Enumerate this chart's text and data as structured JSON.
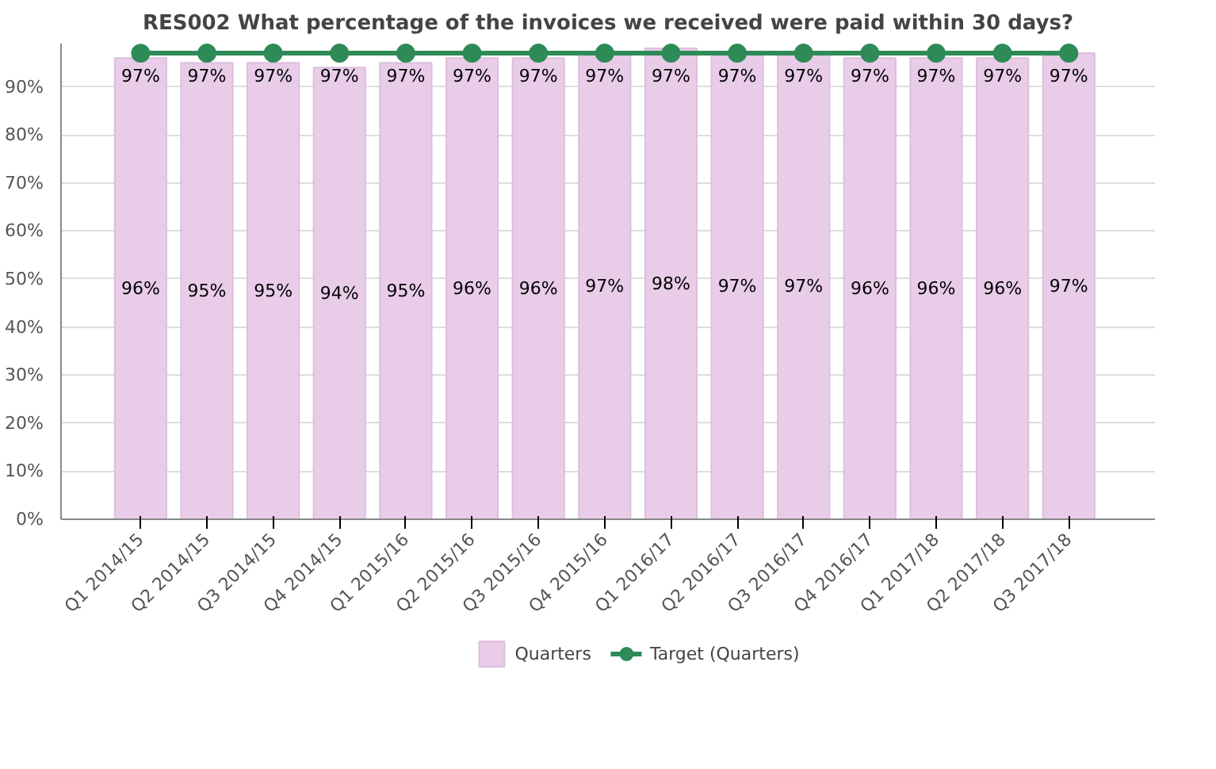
{
  "chart_data": {
    "type": "bar",
    "title": "RES002 What percentage of the invoices we received were paid within 30 days?",
    "categories": [
      "Q1 2014/15",
      "Q2 2014/15",
      "Q3 2014/15",
      "Q4 2014/15",
      "Q1 2015/16",
      "Q2 2015/16",
      "Q3 2015/16",
      "Q4 2015/16",
      "Q1 2016/17",
      "Q2 2016/17",
      "Q3 2016/17",
      "Q4 2016/17",
      "Q1 2017/18",
      "Q2 2017/18",
      "Q3 2017/18"
    ],
    "series": [
      {
        "name": "Quarters",
        "color": "#e8cce8",
        "values": [
          96,
          95,
          95,
          94,
          95,
          96,
          96,
          97,
          98,
          97,
          97,
          96,
          96,
          96,
          97
        ],
        "value_labels": [
          "96%",
          "95%",
          "95%",
          "94%",
          "95%",
          "96%",
          "96%",
          "97%",
          "98%",
          "97%",
          "97%",
          "96%",
          "96%",
          "96%",
          "97%"
        ]
      },
      {
        "name": "Target (Quarters)",
        "type": "line",
        "color": "#2e8b57",
        "marker": "circle",
        "values": [
          97,
          97,
          97,
          97,
          97,
          97,
          97,
          97,
          97,
          97,
          97,
          97,
          97,
          97,
          97
        ],
        "value_labels": [
          "97%",
          "97%",
          "97%",
          "97%",
          "97%",
          "97%",
          "97%",
          "97%",
          "97%",
          "97%",
          "97%",
          "97%",
          "97%",
          "97%",
          "97%"
        ]
      }
    ],
    "ylim": [
      0,
      99
    ],
    "yticks": [
      {
        "value": 0,
        "label": "0%"
      },
      {
        "value": 10,
        "label": "10%"
      },
      {
        "value": 20,
        "label": "20%"
      },
      {
        "value": 30,
        "label": "30%"
      },
      {
        "value": 40,
        "label": "40%"
      },
      {
        "value": 50,
        "label": "50%"
      },
      {
        "value": 60,
        "label": "60%"
      },
      {
        "value": 70,
        "label": "70%"
      },
      {
        "value": 80,
        "label": "80%"
      },
      {
        "value": 90,
        "label": "90%"
      }
    ],
    "grid": "y",
    "legend": "bottom"
  }
}
